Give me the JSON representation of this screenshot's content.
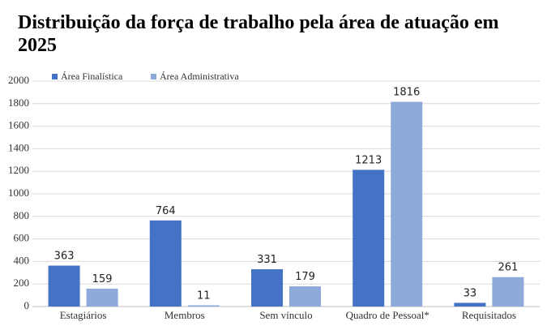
{
  "chart_data": {
    "type": "grouped_bar",
    "title": "Distribuição da força de trabalho pela área de atuação em 2025",
    "categories": [
      "Estagiários",
      "Membros",
      "Sem vínculo",
      "Quadro de Pessoal*",
      "Requisitados"
    ],
    "series": [
      {
        "name": "Área Finalística",
        "color": "#4472c4",
        "values": [
          363,
          764,
          331,
          1213,
          33
        ]
      },
      {
        "name": "Área Administrativa",
        "color": "#8eaadb",
        "values": [
          159,
          11,
          179,
          1816,
          261
        ]
      }
    ],
    "ylim": [
      0,
      2000
    ],
    "yticks": [
      0,
      200,
      400,
      600,
      800,
      1000,
      1200,
      1400,
      1600,
      1800,
      2000
    ],
    "grid": true,
    "legend": "top-left"
  }
}
